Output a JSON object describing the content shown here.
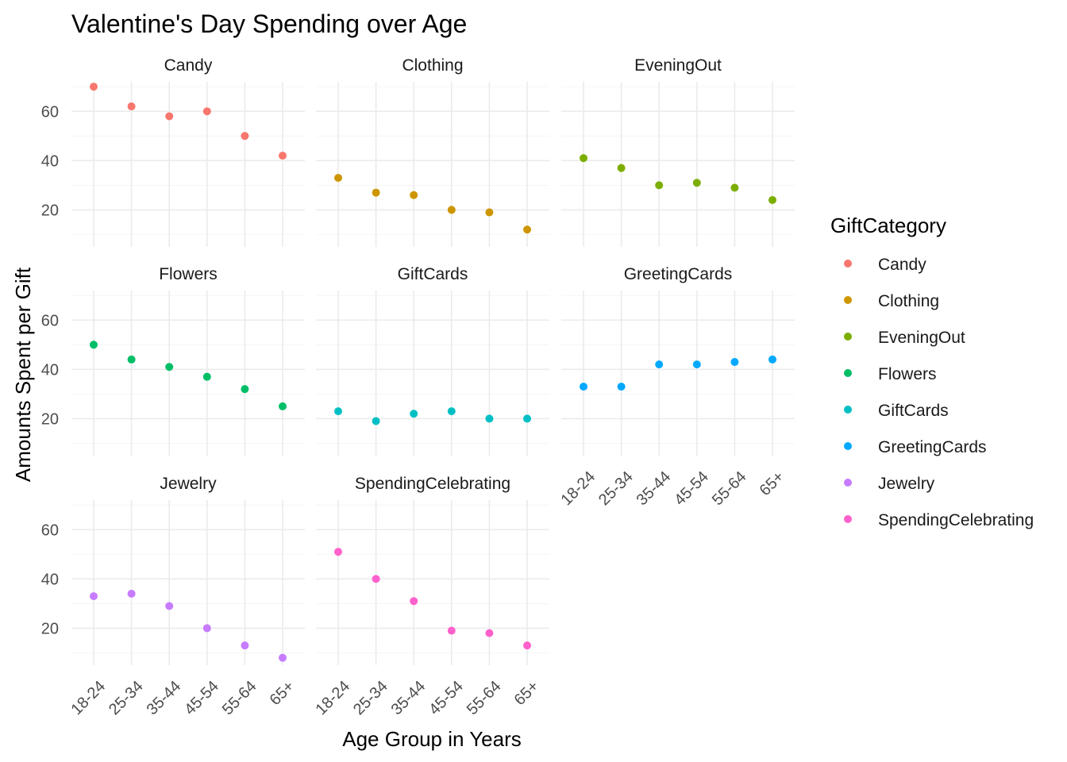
{
  "chart_data": {
    "type": "scatter",
    "title": "Valentine's Day Spending over Age",
    "xlabel": "Age Group in Years",
    "ylabel": "Amounts Spent per Gift",
    "categories": [
      "18-24",
      "25-34",
      "35-44",
      "45-54",
      "55-64",
      "65+"
    ],
    "y_ticks": [
      20,
      40,
      60
    ],
    "ylim": [
      5,
      72
    ],
    "grid": true,
    "legend": {
      "title": "GiftCategory",
      "placement": "right"
    },
    "series": [
      {
        "name": "Candy",
        "color": "#F8766D",
        "values": [
          70,
          62,
          58,
          60,
          50,
          42
        ]
      },
      {
        "name": "Clothing",
        "color": "#CD9600",
        "values": [
          33,
          27,
          26,
          20,
          19,
          12
        ]
      },
      {
        "name": "EveningOut",
        "color": "#7CAE00",
        "values": [
          41,
          37,
          30,
          31,
          29,
          24
        ]
      },
      {
        "name": "Flowers",
        "color": "#00BE67",
        "values": [
          50,
          44,
          41,
          37,
          32,
          25
        ]
      },
      {
        "name": "GiftCards",
        "color": "#00BFC4",
        "values": [
          23,
          19,
          22,
          23,
          20,
          20
        ]
      },
      {
        "name": "GreetingCards",
        "color": "#00A9FF",
        "values": [
          33,
          33,
          42,
          42,
          43,
          44
        ]
      },
      {
        "name": "Jewelry",
        "color": "#C77CFF",
        "values": [
          33,
          34,
          29,
          20,
          13,
          8
        ]
      },
      {
        "name": "SpendingCelebrating",
        "color": "#FF61CC",
        "values": [
          51,
          40,
          31,
          19,
          18,
          13
        ]
      }
    ]
  }
}
